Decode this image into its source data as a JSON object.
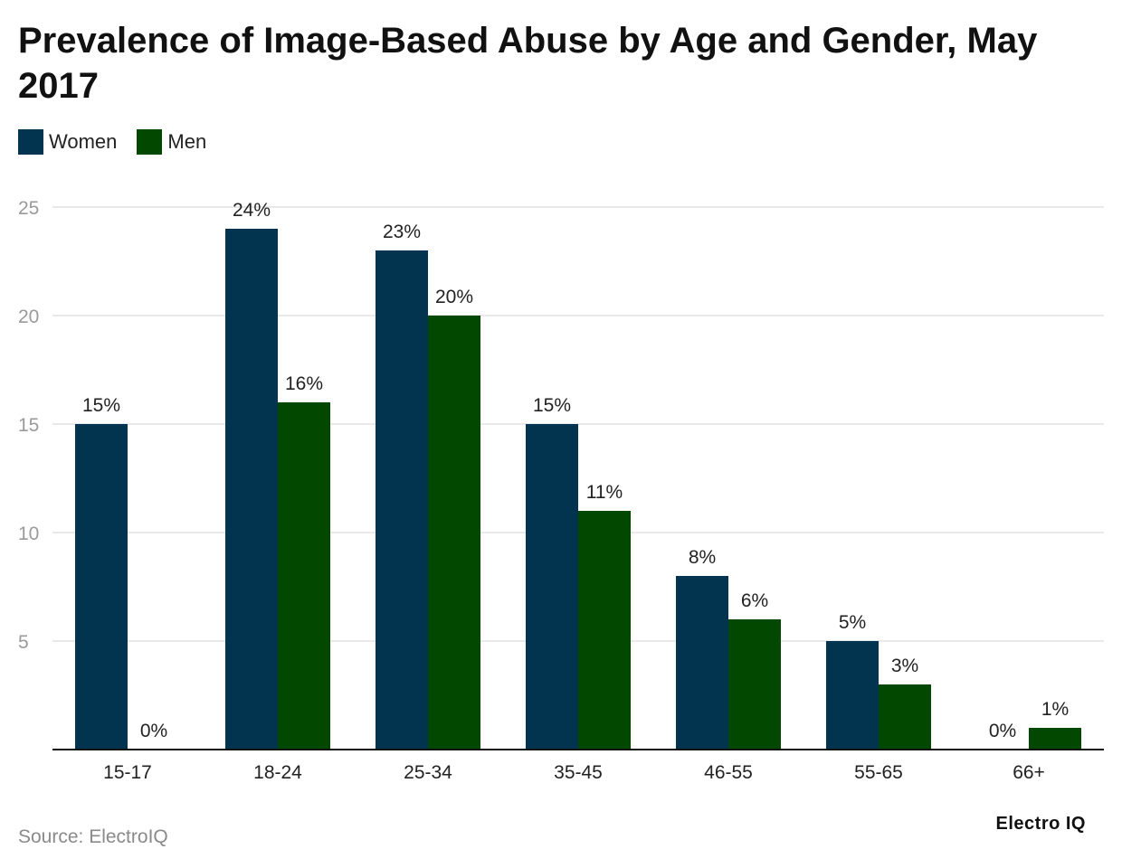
{
  "chart_data": {
    "type": "bar",
    "title": "Prevalence of Image-Based Abuse by Age and Gender, May 2017",
    "categories": [
      "15-17",
      "18-24",
      "25-34",
      "35-45",
      "46-55",
      "55-65",
      "66+"
    ],
    "series": [
      {
        "name": "Women",
        "color": "#02334f",
        "values": [
          15,
          24,
          23,
          15,
          8,
          5,
          0
        ]
      },
      {
        "name": "Men",
        "color": "#034801",
        "values": [
          0,
          16,
          20,
          11,
          6,
          3,
          1
        ]
      }
    ],
    "value_suffix": "%",
    "ylim": [
      0,
      25
    ],
    "yticks": [
      5,
      10,
      15,
      20,
      25
    ],
    "grid": true,
    "legend_position": "top-left"
  },
  "footer": {
    "source": "Source: ElectroIQ",
    "brand": "Electro IQ"
  }
}
